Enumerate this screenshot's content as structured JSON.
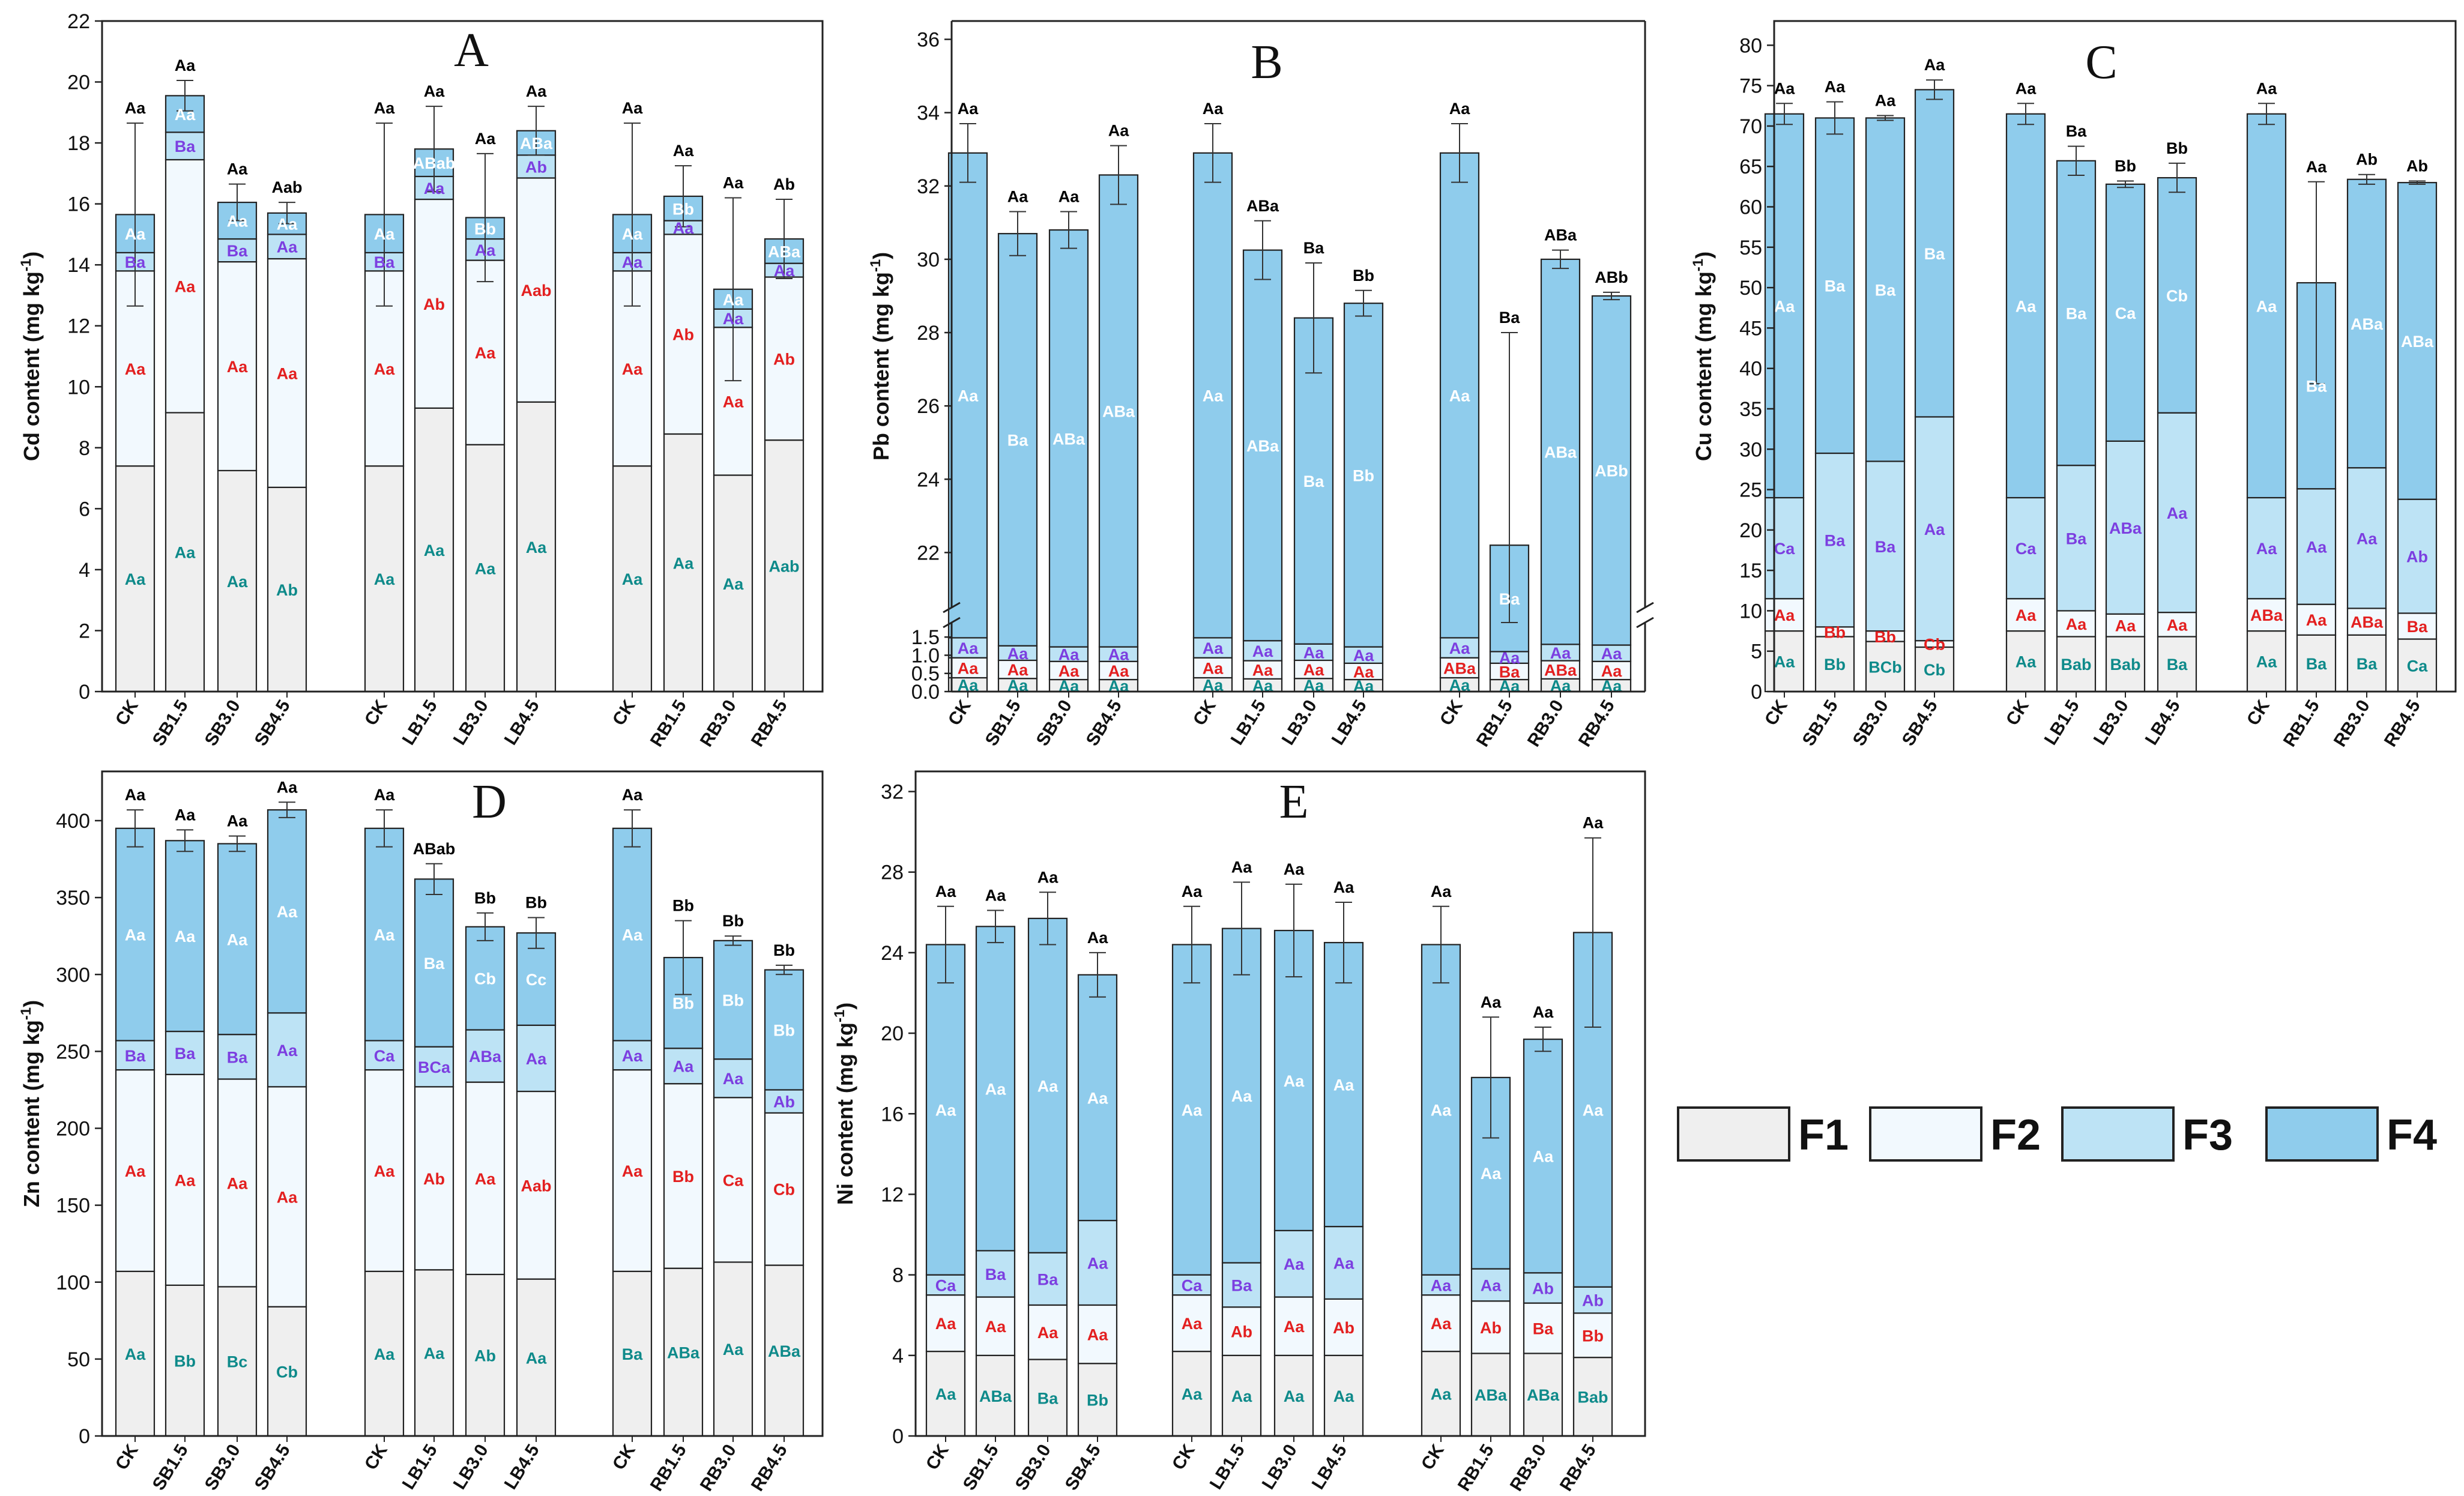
{
  "figure": {
    "colors": {
      "F1": "#efefef",
      "F2": "#f2f9fe",
      "F3": "#bde3f5",
      "F4": "#8fccec",
      "sig_total": "#000000",
      "sig_F1": "#0e8a8a",
      "sig_F2": "#e32020",
      "sig_F3": "#7c3fe0",
      "sig_F4": "#ffffff"
    },
    "legend": [
      {
        "key": "F1",
        "label": "F1"
      },
      {
        "key": "F2",
        "label": "F2"
      },
      {
        "key": "F3",
        "label": "F3"
      },
      {
        "key": "F4",
        "label": "F4"
      }
    ]
  },
  "chart_data": [
    {
      "type": "bar",
      "stacked": true,
      "panel": "A",
      "ylabel": "Cd content (mg kg",
      "ylabel_sup": "-1",
      "ylabel_end": ")",
      "ylim": [
        0,
        22
      ],
      "yticks": [
        0,
        2,
        4,
        6,
        8,
        10,
        12,
        14,
        16,
        18,
        20,
        22
      ],
      "categories": [
        "CK",
        "SB1.5",
        "SB3.0",
        "SB4.5",
        "CK",
        "LB1.5",
        "LB3.0",
        "LB4.5",
        "CK",
        "RB1.5",
        "RB3.0",
        "RB4.5"
      ],
      "series": [
        {
          "name": "F1",
          "values": [
            7.4,
            9.15,
            7.25,
            6.7,
            7.4,
            9.3,
            8.1,
            9.5,
            7.4,
            8.45,
            7.1,
            8.25
          ]
        },
        {
          "name": "F2",
          "values": [
            6.4,
            8.3,
            6.85,
            7.5,
            6.4,
            6.85,
            6.05,
            7.35,
            6.4,
            6.55,
            4.85,
            5.35
          ]
        },
        {
          "name": "F3",
          "values": [
            0.6,
            0.9,
            0.75,
            0.8,
            0.6,
            0.75,
            0.7,
            0.75,
            0.6,
            0.45,
            0.6,
            0.45
          ]
        },
        {
          "name": "F4",
          "values": [
            1.25,
            1.2,
            1.2,
            0.7,
            1.25,
            0.9,
            0.7,
            0.8,
            1.25,
            0.8,
            0.65,
            0.8
          ]
        }
      ],
      "error": [
        3.0,
        0.5,
        0.6,
        0.35,
        3.0,
        1.4,
        2.1,
        0.8,
        3.0,
        1.0,
        3.0,
        1.3
      ],
      "sig_total": [
        "Aa",
        "Aa",
        "Aa",
        "Aab",
        "Aa",
        "Aa",
        "Aa",
        "Aa",
        "Aa",
        "Aa",
        "Aa",
        "Ab"
      ],
      "sig_F1": [
        "Aa",
        "Aa",
        "Aa",
        "Ab",
        "Aa",
        "Aa",
        "Aa",
        "Aa",
        "Aa",
        "Aa",
        "Aa",
        "Aab"
      ],
      "sig_F2": [
        "Aa",
        "Aa",
        "Aa",
        "Aa",
        "Aa",
        "Ab",
        "Aa",
        "Aab",
        "Aa",
        "Ab",
        "Aa",
        "Ab"
      ],
      "sig_F3": [
        "Ba",
        "Ba",
        "Ba",
        "Aa",
        "Ba",
        "Aa",
        "Aa",
        "Ab",
        "Aa",
        "Aa",
        "Aa",
        "Aa"
      ],
      "sig_F4": [
        "Aa",
        "Aa",
        "Aa",
        "Aa",
        "Aa",
        "ABab",
        "Bb",
        "ABa",
        "Aa",
        "Bb",
        "Aa",
        "ABa"
      ]
    },
    {
      "type": "bar",
      "stacked": true,
      "panel": "B",
      "ylabel": "Pb content (mg kg",
      "ylabel_sup": "-1",
      "ylabel_end": ")",
      "ylim": [
        0,
        36.5
      ],
      "axis_break": {
        "lower_max": 1.9,
        "upper_min": 20.5
      },
      "yticks_lower": [
        0.0,
        0.5,
        1.0,
        1.5
      ],
      "yticks_upper": [
        22,
        24,
        26,
        28,
        30,
        32,
        34,
        36
      ],
      "categories": [
        "CK",
        "SB1.5",
        "SB3.0",
        "SB4.5",
        "CK",
        "LB1.5",
        "LB3.0",
        "LB4.5",
        "CK",
        "RB1.5",
        "RB3.0",
        "RB4.5"
      ],
      "series": [
        {
          "name": "F1",
          "values": [
            0.38,
            0.36,
            0.33,
            0.33,
            0.38,
            0.35,
            0.36,
            0.33,
            0.38,
            0.33,
            0.35,
            0.33
          ]
        },
        {
          "name": "F2",
          "values": [
            0.55,
            0.5,
            0.5,
            0.5,
            0.55,
            0.5,
            0.5,
            0.45,
            0.55,
            0.45,
            0.5,
            0.5
          ]
        },
        {
          "name": "F3",
          "values": [
            0.55,
            0.4,
            0.4,
            0.4,
            0.55,
            0.55,
            0.45,
            0.45,
            0.55,
            0.32,
            0.45,
            0.45
          ]
        },
        {
          "name": "F4",
          "values": [
            31.42,
            29.44,
            29.57,
            31.07,
            31.42,
            28.85,
            27.09,
            27.57,
            31.42,
            21.1,
            28.7,
            27.72
          ]
        }
      ],
      "error": [
        0.8,
        0.6,
        0.5,
        0.8,
        0.8,
        0.8,
        1.5,
        0.35,
        0.8,
        5.8,
        0.25,
        0.1
      ],
      "sig_total": [
        "Aa",
        "Aa",
        "Aa",
        "Aa",
        "Aa",
        "ABa",
        "Ba",
        "Bb",
        "Aa",
        "Ba",
        "ABa",
        "ABb"
      ],
      "sig_F1": [
        "Aa",
        "Aa",
        "Aa",
        "Aa",
        "Aa",
        "Aa",
        "Aa",
        "Aa",
        "Aa",
        "Aa",
        "Aa",
        "Aa"
      ],
      "sig_F2": [
        "Aa",
        "Aa",
        "Aa",
        "Aa",
        "Aa",
        "Aa",
        "Aa",
        "Aa",
        "ABa",
        "Ba",
        "ABa",
        "Aa"
      ],
      "sig_F3": [
        "Aa",
        "Aa",
        "Aa",
        "Aa",
        "Aa",
        "Aa",
        "Aa",
        "Aa",
        "Aa",
        "Aa",
        "Aa",
        "Aa"
      ],
      "sig_F4": [
        "Aa",
        "Ba",
        "ABa",
        "ABa",
        "Aa",
        "ABa",
        "Ba",
        "Bb",
        "Aa",
        "Ba",
        "ABa",
        "ABb"
      ]
    },
    {
      "type": "bar",
      "stacked": true,
      "panel": "C",
      "ylabel": "Cu content (mg kg",
      "ylabel_sup": "-1",
      "ylabel_end": ")",
      "ylim": [
        0,
        83
      ],
      "yticks": [
        0,
        5,
        10,
        15,
        20,
        25,
        30,
        35,
        40,
        45,
        50,
        55,
        60,
        65,
        70,
        75,
        80
      ],
      "categories": [
        "CK",
        "SB1.5",
        "SB3.0",
        "SB4.5",
        "CK",
        "LB1.5",
        "LB3.0",
        "LB4.5",
        "CK",
        "RB1.5",
        "RB3.0",
        "RB4.5"
      ],
      "series": [
        {
          "name": "F1",
          "values": [
            7.5,
            6.8,
            6.2,
            5.5,
            7.5,
            6.8,
            6.8,
            6.8,
            7.5,
            7.0,
            7.0,
            6.5
          ]
        },
        {
          "name": "F2",
          "values": [
            4.0,
            1.2,
            1.3,
            0.8,
            4.0,
            3.2,
            2.8,
            3.0,
            4.0,
            3.8,
            3.3,
            3.2
          ]
        },
        {
          "name": "F3",
          "values": [
            12.5,
            21.5,
            21.0,
            27.7,
            12.5,
            18.0,
            21.4,
            24.7,
            12.5,
            14.3,
            17.4,
            14.1
          ]
        },
        {
          "name": "F4",
          "values": [
            47.5,
            41.5,
            42.5,
            40.5,
            47.5,
            37.7,
            31.8,
            29.1,
            47.5,
            25.5,
            35.7,
            39.2
          ]
        }
      ],
      "error": [
        1.3,
        2.0,
        0.3,
        1.2,
        1.3,
        1.8,
        0.4,
        1.8,
        1.3,
        12.5,
        0.6,
        0.2
      ],
      "sig_total": [
        "Aa",
        "Aa",
        "Aa",
        "Aa",
        "Aa",
        "Ba",
        "Bb",
        "Bb",
        "Aa",
        "Aa",
        "Ab",
        "Ab"
      ],
      "sig_F1": [
        "Aa",
        "Bb",
        "BCb",
        "Cb",
        "Aa",
        "Bab",
        "Bab",
        "Ba",
        "Aa",
        "Ba",
        "Ba",
        "Ca"
      ],
      "sig_F2": [
        "Aa",
        "Bb",
        "Bb",
        "Cb",
        "Aa",
        "Aa",
        "Aa",
        "Aa",
        "ABa",
        "Aa",
        "ABa",
        "Ba"
      ],
      "sig_F3": [
        "Ca",
        "Ba",
        "Ba",
        "Aa",
        "Ca",
        "Ba",
        "ABa",
        "Aa",
        "Aa",
        "Aa",
        "Aa",
        "Ab"
      ],
      "sig_F4": [
        "Aa",
        "Ba",
        "Ba",
        "Ba",
        "Aa",
        "Ba",
        "Ca",
        "Cb",
        "Aa",
        "Ba",
        "ABa",
        "ABa"
      ]
    },
    {
      "type": "bar",
      "stacked": true,
      "panel": "D",
      "ylabel": "Zn content (mg kg",
      "ylabel_sup": "-1",
      "ylabel_end": ")",
      "ylim": [
        0,
        432
      ],
      "yticks": [
        0,
        50,
        100,
        150,
        200,
        250,
        300,
        350,
        400
      ],
      "categories": [
        "CK",
        "SB1.5",
        "SB3.0",
        "SB4.5",
        "CK",
        "LB1.5",
        "LB3.0",
        "LB4.5",
        "CK",
        "RB1.5",
        "RB3.0",
        "RB4.5"
      ],
      "series": [
        {
          "name": "F1",
          "values": [
            107,
            98,
            97,
            84,
            107,
            108,
            105,
            102,
            107,
            109,
            113,
            111
          ]
        },
        {
          "name": "F2",
          "values": [
            131,
            137,
            135,
            143,
            131,
            119,
            125,
            122,
            131,
            120,
            107,
            99
          ]
        },
        {
          "name": "F3",
          "values": [
            19,
            28,
            29,
            48,
            19,
            26,
            34,
            43,
            19,
            23,
            25,
            15
          ]
        },
        {
          "name": "F4",
          "values": [
            138,
            124,
            124,
            132,
            138,
            109,
            67,
            60,
            138,
            59,
            77,
            78
          ]
        }
      ],
      "error": [
        12,
        7,
        5,
        5,
        12,
        10,
        9,
        10,
        12,
        24,
        3,
        3
      ],
      "sig_total": [
        "Aa",
        "Aa",
        "Aa",
        "Aa",
        "Aa",
        "ABab",
        "Bb",
        "Bb",
        "Aa",
        "Bb",
        "Bb",
        "Bb"
      ],
      "sig_F1": [
        "Aa",
        "Bb",
        "Bc",
        "Cb",
        "Aa",
        "Aa",
        "Ab",
        "Aa",
        "Ba",
        "ABa",
        "Aa",
        "ABa"
      ],
      "sig_F2": [
        "Aa",
        "Aa",
        "Aa",
        "Aa",
        "Aa",
        "Ab",
        "Aa",
        "Aab",
        "Aa",
        "Bb",
        "Ca",
        "Cb"
      ],
      "sig_F3": [
        "Ba",
        "Ba",
        "Ba",
        "Aa",
        "Ca",
        "BCa",
        "ABa",
        "Aa",
        "Aa",
        "Aa",
        "Aa",
        "Ab"
      ],
      "sig_F4": [
        "Aa",
        "Aa",
        "Aa",
        "Aa",
        "Aa",
        "Ba",
        "Cb",
        "Cc",
        "Aa",
        "Bb",
        "Bb",
        "Bb"
      ]
    },
    {
      "type": "bar",
      "stacked": true,
      "panel": "E",
      "ylabel": "Ni content (mg kg",
      "ylabel_sup": "-1",
      "ylabel_end": ")",
      "ylim": [
        0,
        33
      ],
      "yticks": [
        0,
        4,
        8,
        12,
        16,
        20,
        24,
        28,
        32
      ],
      "categories": [
        "CK",
        "SB1.5",
        "SB3.0",
        "SB4.5",
        "CK",
        "LB1.5",
        "LB3.0",
        "LB4.5",
        "CK",
        "RB1.5",
        "RB3.0",
        "RB4.5"
      ],
      "series": [
        {
          "name": "F1",
          "values": [
            4.2,
            4.0,
            3.8,
            3.6,
            4.2,
            4.0,
            4.0,
            4.0,
            4.2,
            4.1,
            4.1,
            3.9
          ]
        },
        {
          "name": "F2",
          "values": [
            2.8,
            2.9,
            2.7,
            2.9,
            2.8,
            2.4,
            2.9,
            2.8,
            2.8,
            2.6,
            2.5,
            2.2
          ]
        },
        {
          "name": "F3",
          "values": [
            1.0,
            2.3,
            2.6,
            4.2,
            1.0,
            2.2,
            3.3,
            3.6,
            1.0,
            1.6,
            1.5,
            1.3
          ]
        },
        {
          "name": "F4",
          "values": [
            16.4,
            16.1,
            16.6,
            12.2,
            16.4,
            16.6,
            14.9,
            14.1,
            16.4,
            9.5,
            11.6,
            17.6
          ]
        }
      ],
      "error": [
        1.9,
        0.8,
        1.3,
        1.1,
        1.9,
        2.3,
        2.3,
        2.0,
        1.9,
        3.0,
        0.6,
        4.7
      ],
      "sig_total": [
        "Aa",
        "Aa",
        "Aa",
        "Aa",
        "Aa",
        "Aa",
        "Aa",
        "Aa",
        "Aa",
        "Aa",
        "Aa",
        "Aa"
      ],
      "sig_F1": [
        "Aa",
        "ABa",
        "Ba",
        "Bb",
        "Aa",
        "Aa",
        "Aa",
        "Aa",
        "Aa",
        "ABa",
        "ABa",
        "Bab"
      ],
      "sig_F2": [
        "Aa",
        "Aa",
        "Aa",
        "Aa",
        "Aa",
        "Ab",
        "Aa",
        "Ab",
        "Aa",
        "Ab",
        "Ba",
        "Bb"
      ],
      "sig_F3": [
        "Ca",
        "Ba",
        "Ba",
        "Aa",
        "Ca",
        "Ba",
        "Aa",
        "Aa",
        "Aa",
        "Aa",
        "Ab",
        "Ab"
      ],
      "sig_F4": [
        "Aa",
        "Aa",
        "Aa",
        "Aa",
        "Aa",
        "Aa",
        "Aa",
        "Aa",
        "Aa",
        "Aa",
        "Aa",
        "Aa"
      ]
    }
  ]
}
